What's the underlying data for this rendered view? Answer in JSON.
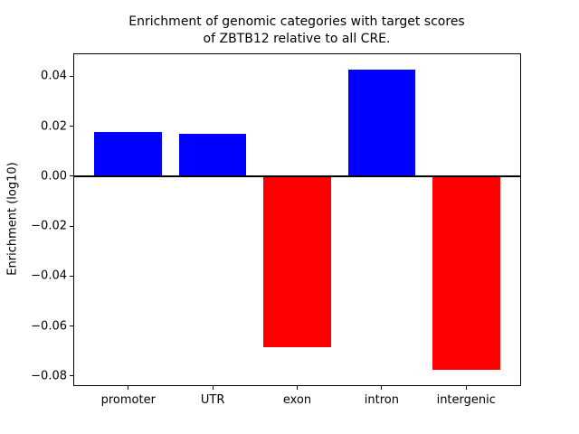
{
  "title": {
    "line1": "Enrichment of genomic categories with target scores",
    "line2": "of ZBTB12 relative to all CRE."
  },
  "chart_data": {
    "type": "bar",
    "title": "Enrichment of genomic categories with target scores\nof ZBTB12 relative to all CRE.",
    "categories": [
      "promoter",
      "UTR",
      "exon",
      "intron",
      "intergenic"
    ],
    "values": [
      0.0178,
      0.017,
      -0.0685,
      0.0428,
      -0.0777
    ],
    "xlabel": "",
    "ylabel": "Enrichment (log10)",
    "ylim": [
      -0.0837,
      0.0488
    ],
    "xlim": [
      -0.64,
      4.64
    ],
    "yticks": [
      0.04,
      0.02,
      0.0,
      -0.02,
      -0.04,
      -0.06,
      -0.08
    ],
    "ytick_labels": [
      "0.04",
      "0.02",
      "0.00",
      "−0.02",
      "−0.04",
      "−0.06",
      "−0.08"
    ],
    "bar_width_units": 0.8,
    "bar_colors": {
      "positive": "#0000ff",
      "negative": "#ff0000"
    },
    "zero_line": true,
    "grid": false,
    "legend": false,
    "background": "#ffffff",
    "spine_color": "#000000"
  }
}
